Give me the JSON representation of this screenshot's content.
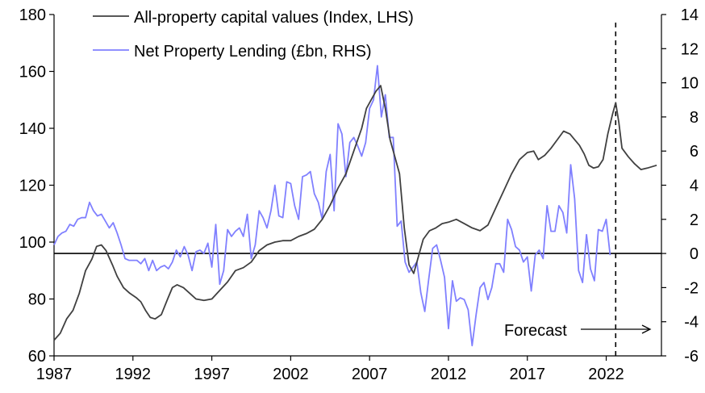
{
  "chart_data": {
    "type": "line",
    "title": "",
    "xlabel": "",
    "ylabel_left": "",
    "ylabel_right": "",
    "x_ticks": [
      "1987",
      "1992",
      "1997",
      "2002",
      "2007",
      "2012",
      "2017",
      "2022"
    ],
    "x_range": [
      1987,
      2025.5
    ],
    "y_left": {
      "range": [
        60,
        180
      ],
      "ticks": [
        "60",
        "80",
        "100",
        "120",
        "140",
        "160",
        "180"
      ]
    },
    "y_right": {
      "range": [
        -6,
        14
      ],
      "ticks": [
        "-6",
        "-4",
        "-2",
        "0",
        "2",
        "4",
        "6",
        "8",
        "10",
        "12",
        "14"
      ]
    },
    "forecast_x": 2022.6,
    "forecast_label": "Forecast",
    "series": [
      {
        "name": "All-property capital values (Index, LHS)",
        "axis": "left",
        "color": "#404040",
        "points": [
          [
            1987.0,
            65.5
          ],
          [
            1987.4,
            68
          ],
          [
            1987.8,
            73
          ],
          [
            1988.2,
            76
          ],
          [
            1988.6,
            82
          ],
          [
            1989.0,
            90
          ],
          [
            1989.4,
            94
          ],
          [
            1989.7,
            98.5
          ],
          [
            1990.0,
            99
          ],
          [
            1990.3,
            97
          ],
          [
            1990.7,
            92
          ],
          [
            1991.0,
            88
          ],
          [
            1991.4,
            84
          ],
          [
            1991.8,
            82
          ],
          [
            1992.2,
            80.5
          ],
          [
            1992.5,
            79
          ],
          [
            1992.8,
            76
          ],
          [
            1993.1,
            73.5
          ],
          [
            1993.4,
            73
          ],
          [
            1993.8,
            74.5
          ],
          [
            1994.2,
            80
          ],
          [
            1994.5,
            84
          ],
          [
            1994.8,
            85
          ],
          [
            1995.2,
            84
          ],
          [
            1995.6,
            82
          ],
          [
            1996.0,
            80
          ],
          [
            1996.5,
            79.5
          ],
          [
            1997.0,
            80
          ],
          [
            1997.5,
            83
          ],
          [
            1998.0,
            86
          ],
          [
            1998.5,
            90
          ],
          [
            1999.0,
            91
          ],
          [
            1999.5,
            93
          ],
          [
            2000.0,
            97
          ],
          [
            2000.5,
            99
          ],
          [
            2001.0,
            100
          ],
          [
            2001.5,
            100.5
          ],
          [
            2002.0,
            100.5
          ],
          [
            2002.5,
            102
          ],
          [
            2003.0,
            103
          ],
          [
            2003.5,
            104.5
          ],
          [
            2004.0,
            108
          ],
          [
            2004.5,
            113
          ],
          [
            2005.0,
            119
          ],
          [
            2005.5,
            124
          ],
          [
            2006.0,
            132
          ],
          [
            2006.5,
            140
          ],
          [
            2006.8,
            147
          ],
          [
            2007.1,
            150
          ],
          [
            2007.4,
            153
          ],
          [
            2007.7,
            155
          ],
          [
            2008.0,
            147
          ],
          [
            2008.3,
            136
          ],
          [
            2008.6,
            130
          ],
          [
            2008.9,
            124
          ],
          [
            2009.2,
            105
          ],
          [
            2009.5,
            92
          ],
          [
            2009.8,
            89
          ],
          [
            2010.1,
            95
          ],
          [
            2010.4,
            101
          ],
          [
            2010.8,
            104
          ],
          [
            2011.2,
            105
          ],
          [
            2011.6,
            106.5
          ],
          [
            2012.0,
            107
          ],
          [
            2012.5,
            108
          ],
          [
            2013.0,
            106.5
          ],
          [
            2013.5,
            105
          ],
          [
            2014.0,
            104
          ],
          [
            2014.5,
            106
          ],
          [
            2015.0,
            112
          ],
          [
            2015.5,
            118
          ],
          [
            2016.0,
            124
          ],
          [
            2016.5,
            129
          ],
          [
            2017.0,
            131.5
          ],
          [
            2017.4,
            132
          ],
          [
            2017.7,
            129
          ],
          [
            2018.1,
            130.5
          ],
          [
            2018.5,
            133
          ],
          [
            2018.9,
            136
          ],
          [
            2019.3,
            139
          ],
          [
            2019.7,
            138
          ],
          [
            2020.0,
            136
          ],
          [
            2020.3,
            134
          ],
          [
            2020.6,
            131
          ],
          [
            2020.9,
            127
          ],
          [
            2021.2,
            126
          ],
          [
            2021.5,
            126.5
          ],
          [
            2021.8,
            129
          ],
          [
            2022.1,
            138
          ],
          [
            2022.4,
            145
          ],
          [
            2022.6,
            149
          ],
          [
            2022.8,
            142
          ],
          [
            2023.0,
            133
          ],
          [
            2023.4,
            130
          ],
          [
            2023.8,
            127.5
          ],
          [
            2024.2,
            125.5
          ],
          [
            2024.6,
            126
          ],
          [
            2025.2,
            127
          ]
        ]
      },
      {
        "name": "Net Property Lending (£bn, RHS)",
        "axis": "right",
        "color": "#8080ff",
        "points": [
          [
            1987.0,
            0.5
          ],
          [
            1987.25,
            1
          ],
          [
            1987.5,
            1.2
          ],
          [
            1987.75,
            1.3
          ],
          [
            1988.0,
            1.7
          ],
          [
            1988.25,
            1.6
          ],
          [
            1988.5,
            2
          ],
          [
            1988.75,
            2.1
          ],
          [
            1989.0,
            2.1
          ],
          [
            1989.25,
            3
          ],
          [
            1989.5,
            2.5
          ],
          [
            1989.75,
            2.2
          ],
          [
            1990.0,
            2.3
          ],
          [
            1990.25,
            1.9
          ],
          [
            1990.5,
            1.5
          ],
          [
            1990.75,
            1.8
          ],
          [
            1991.0,
            1.2
          ],
          [
            1991.25,
            0.5
          ],
          [
            1991.5,
            -0.3
          ],
          [
            1991.75,
            -0.4
          ],
          [
            1992.0,
            -0.4
          ],
          [
            1992.25,
            -0.4
          ],
          [
            1992.5,
            -0.6
          ],
          [
            1992.75,
            -0.3
          ],
          [
            1993.0,
            -1
          ],
          [
            1993.25,
            -0.4
          ],
          [
            1993.5,
            -1
          ],
          [
            1993.75,
            -0.8
          ],
          [
            1994.0,
            -0.7
          ],
          [
            1994.25,
            -0.9
          ],
          [
            1994.5,
            -0.5
          ],
          [
            1994.75,
            0.2
          ],
          [
            1995.0,
            -0.2
          ],
          [
            1995.25,
            0.4
          ],
          [
            1995.5,
            -0.1
          ],
          [
            1995.75,
            -1
          ],
          [
            1996.0,
            0.1
          ],
          [
            1996.25,
            0.2
          ],
          [
            1996.5,
            0
          ],
          [
            1996.75,
            0.6
          ],
          [
            1997.0,
            -0.8
          ],
          [
            1997.25,
            1.7
          ],
          [
            1997.5,
            -1.8
          ],
          [
            1997.75,
            -1
          ],
          [
            1998.0,
            1.4
          ],
          [
            1998.25,
            1
          ],
          [
            1998.5,
            1.3
          ],
          [
            1998.75,
            1.5
          ],
          [
            1999.0,
            1
          ],
          [
            1999.25,
            2.3
          ],
          [
            1999.5,
            -0.3
          ],
          [
            1999.75,
            0.5
          ],
          [
            2000.0,
            2.5
          ],
          [
            2000.25,
            2.1
          ],
          [
            2000.5,
            1.5
          ],
          [
            2000.75,
            2.5
          ],
          [
            2001.0,
            4
          ],
          [
            2001.25,
            2.2
          ],
          [
            2001.5,
            2.1
          ],
          [
            2001.75,
            4.2
          ],
          [
            2002.0,
            4.1
          ],
          [
            2002.25,
            2.8
          ],
          [
            2002.5,
            2
          ],
          [
            2002.75,
            4.5
          ],
          [
            2003.0,
            4.6
          ],
          [
            2003.25,
            4.8
          ],
          [
            2003.5,
            3.5
          ],
          [
            2003.75,
            3
          ],
          [
            2004.0,
            2
          ],
          [
            2004.25,
            4.8
          ],
          [
            2004.5,
            5.8
          ],
          [
            2004.75,
            2.5
          ],
          [
            2005.0,
            7.6
          ],
          [
            2005.25,
            7
          ],
          [
            2005.5,
            4.5
          ],
          [
            2005.75,
            6.5
          ],
          [
            2006.0,
            6.8
          ],
          [
            2006.25,
            6.3
          ],
          [
            2006.5,
            5.7
          ],
          [
            2006.75,
            6.5
          ],
          [
            2007.0,
            8.5
          ],
          [
            2007.25,
            9
          ],
          [
            2007.5,
            11
          ],
          [
            2007.75,
            8
          ],
          [
            2008.0,
            9.3
          ],
          [
            2008.25,
            6.8
          ],
          [
            2008.5,
            6.8
          ],
          [
            2008.75,
            1.6
          ],
          [
            2009.0,
            1.9
          ],
          [
            2009.25,
            -0.5
          ],
          [
            2009.5,
            -1.1
          ],
          [
            2009.75,
            -0.8
          ],
          [
            2010.0,
            -0.5
          ],
          [
            2010.25,
            -2.3
          ],
          [
            2010.5,
            -3.4
          ],
          [
            2010.75,
            -1.5
          ],
          [
            2011.0,
            0.3
          ],
          [
            2011.25,
            0.5
          ],
          [
            2011.5,
            -0.4
          ],
          [
            2011.75,
            -1.4
          ],
          [
            2012.0,
            -4.4
          ],
          [
            2012.25,
            -1.6
          ],
          [
            2012.5,
            -2.8
          ],
          [
            2012.75,
            -2.6
          ],
          [
            2013.0,
            -2.7
          ],
          [
            2013.25,
            -3.3
          ],
          [
            2013.5,
            -5.4
          ],
          [
            2013.75,
            -3.6
          ],
          [
            2014.0,
            -2
          ],
          [
            2014.25,
            -1.7
          ],
          [
            2014.5,
            -2.7
          ],
          [
            2014.75,
            -2
          ],
          [
            2015.0,
            -0.6
          ],
          [
            2015.25,
            -0.6
          ],
          [
            2015.5,
            -1.1
          ],
          [
            2015.75,
            2
          ],
          [
            2016.0,
            1.4
          ],
          [
            2016.25,
            0.4
          ],
          [
            2016.5,
            0.2
          ],
          [
            2016.75,
            -0.5
          ],
          [
            2017.0,
            -0.2
          ],
          [
            2017.25,
            -2.2
          ],
          [
            2017.5,
            -0.1
          ],
          [
            2017.75,
            0.2
          ],
          [
            2018.0,
            -0.3
          ],
          [
            2018.25,
            2.8
          ],
          [
            2018.5,
            1.3
          ],
          [
            2018.75,
            1.3
          ],
          [
            2019.0,
            2.8
          ],
          [
            2019.25,
            2.4
          ],
          [
            2019.5,
            1.2
          ],
          [
            2019.75,
            5.2
          ],
          [
            2020.0,
            3.2
          ],
          [
            2020.25,
            -1
          ],
          [
            2020.5,
            -1.7
          ],
          [
            2020.75,
            1.1
          ],
          [
            2021.0,
            -0.9
          ],
          [
            2021.25,
            -1.6
          ],
          [
            2021.5,
            1.4
          ],
          [
            2021.75,
            1.3
          ],
          [
            2022.0,
            2
          ],
          [
            2022.25,
            -0.1
          ]
        ]
      }
    ]
  },
  "legend": {
    "series1": "All-property capital values (Index, LHS)",
    "series2": "Net Property Lending (£bn, RHS)"
  },
  "colors": {
    "series1": "#404040",
    "series2": "#8080ff",
    "axis": "#000000"
  }
}
